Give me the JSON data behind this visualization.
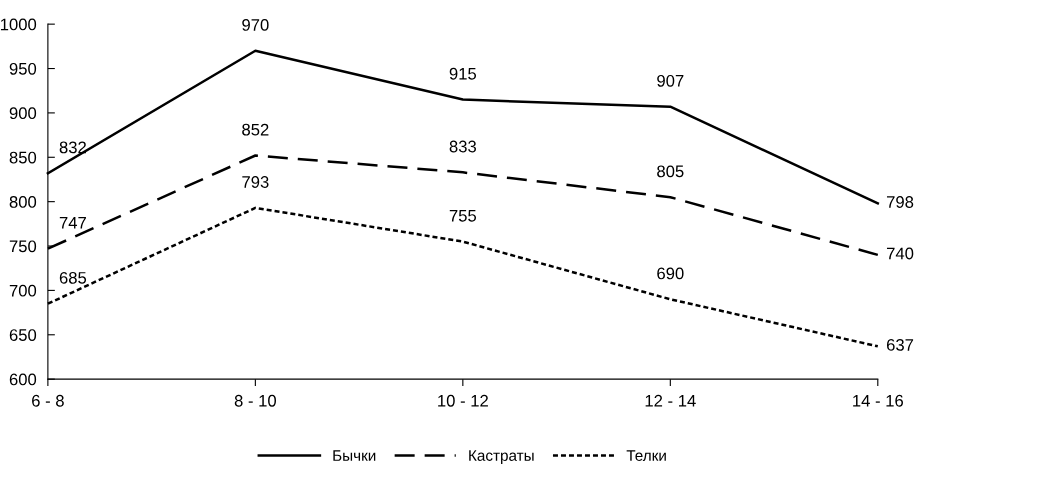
{
  "chart_data": {
    "type": "line",
    "categories": [
      "6 - 8",
      "8 - 10",
      "10 - 12",
      "12 - 14",
      "14 - 16"
    ],
    "series": [
      {
        "name": "Бычки",
        "color": "#000000",
        "line_style": "solid",
        "values": [
          832,
          970,
          915,
          907,
          798
        ]
      },
      {
        "name": "Кастраты",
        "color": "#000000",
        "line_style": "dashed",
        "values": [
          747,
          852,
          833,
          805,
          740
        ]
      },
      {
        "name": "Телки",
        "color": "#000000",
        "line_style": "dotted",
        "values": [
          685,
          793,
          755,
          690,
          637
        ]
      }
    ],
    "ylim": [
      600,
      1000
    ],
    "yticks": [
      600,
      650,
      700,
      750,
      800,
      850,
      900,
      950,
      1000
    ],
    "grid": false,
    "legend": "bottom",
    "data_labels": true,
    "marker": "none"
  }
}
